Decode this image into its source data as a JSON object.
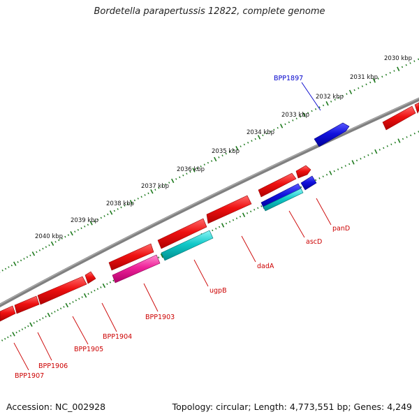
{
  "title": "Bordetella parapertussis 12822, complete genome",
  "footer": {
    "accession": "Accession: NC_002928",
    "summary": "Topology: circular; Length: 4,773,551 bp; Genes: 4,249"
  },
  "colors": {
    "backbone": "#808080",
    "tick": "#1e7a1e",
    "gene_red": "#ee1111",
    "gene_blue": "#1111dd",
    "gene_cyan": "#11c8c8",
    "gene_pink": "#ee2299",
    "label_red": "#cc0000",
    "label_blue": "#0000cc"
  },
  "scale_labels": [
    "2030 kbp",
    "2031 kbp",
    "2032 kbp",
    "2033 kbp",
    "2034 kbp",
    "2035 kbp",
    "2036 kbp",
    "2037 kbp",
    "2038 kbp",
    "2039 kbp",
    "2040 kbp"
  ],
  "gene_labels": [
    "BPP1897",
    "panD",
    "ascD",
    "dadA",
    "ugpB",
    "BPP1903",
    "BPP1904",
    "BPP1905",
    "BPP1906",
    "BPP1907"
  ]
}
